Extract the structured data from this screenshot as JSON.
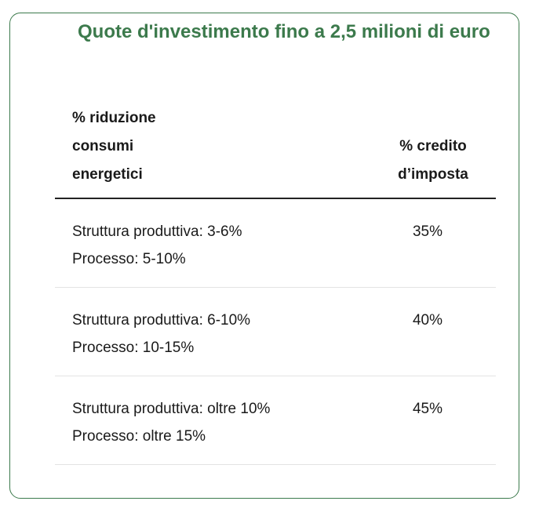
{
  "section": {
    "title": "Quote d'investimento fino a 2,5 milioni di euro"
  },
  "table": {
    "headers": {
      "left": "% riduzione\nconsumi\nenergetici",
      "right": "% credito\nd’imposta"
    },
    "rows": [
      {
        "line1": "Struttura produttiva: 3-6%",
        "line2": "Processo: 5-10%",
        "credit": "35%"
      },
      {
        "line1": "Struttura produttiva: 6-10%",
        "line2": "Processo: 10-15%",
        "credit": "40%"
      },
      {
        "line1": "Struttura produttiva: oltre 10%",
        "line2": "Processo: oltre 15%",
        "credit": "45%"
      }
    ]
  },
  "colors": {
    "accent": "#3c7a4c",
    "header_rule": "#222222",
    "row_rule": "#e3e3e3"
  }
}
